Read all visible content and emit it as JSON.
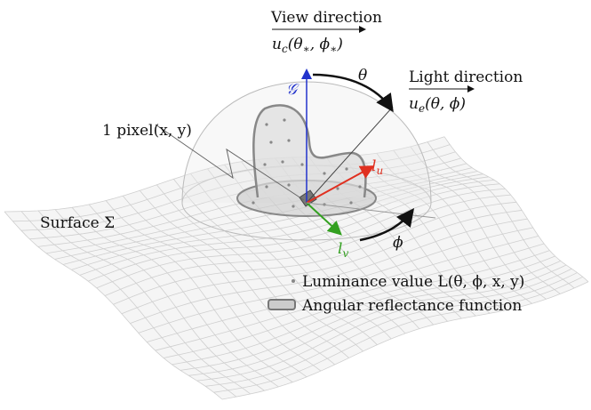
{
  "labels": {
    "view_direction": "View direction",
    "view_vector": [
      "u",
      "c",
      "(θ",
      "∗",
      ", ϕ",
      "∗",
      ")"
    ],
    "light_direction": "Light direction",
    "light_vector": [
      "u",
      "e",
      "(θ, ϕ)"
    ],
    "theta": "θ",
    "g_axis": "𝒢",
    "pixel": "1 pixel(x, y)",
    "l_u": [
      "l",
      "u"
    ],
    "l_v": [
      "l",
      "v"
    ],
    "surface": "Surface Σ",
    "phi": "ϕ"
  },
  "legend": {
    "luminance": "Luminance value L(θ, ϕ, x, y)",
    "reflectance": "Angular reflectance function"
  }
}
